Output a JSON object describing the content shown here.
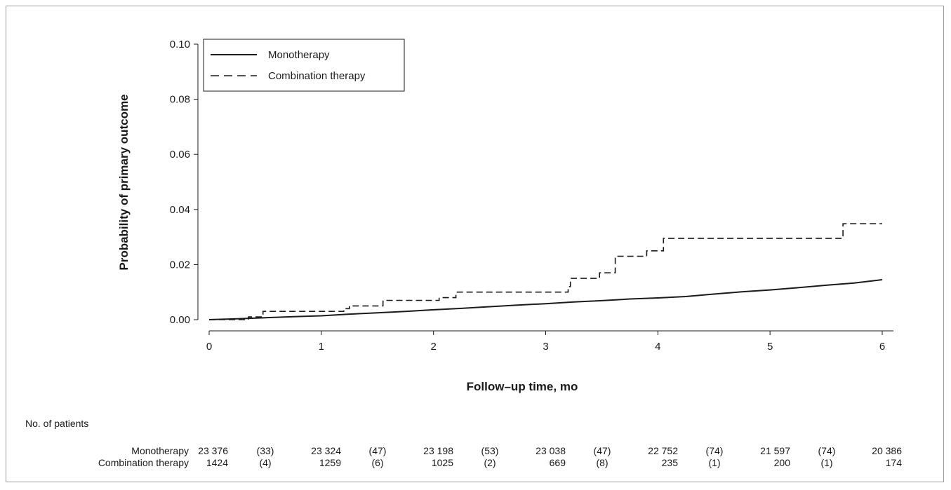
{
  "chart_data": {
    "type": "line",
    "subtype": "kaplan-meier cumulative incidence (step)",
    "title": "",
    "xlabel": "Follow–up time, mo",
    "ylabel": "Probability of primary outcome",
    "xlim": [
      0,
      6
    ],
    "ylim": [
      0,
      0.1
    ],
    "x_ticks": [
      0,
      1,
      2,
      3,
      4,
      5,
      6
    ],
    "x_tick_labels": [
      "0",
      "1",
      "2",
      "3",
      "4",
      "5",
      "6"
    ],
    "y_ticks": [
      0.0,
      0.02,
      0.04,
      0.06,
      0.08,
      0.1
    ],
    "y_tick_labels": [
      "0.00",
      "0.02",
      "0.04",
      "0.06",
      "0.08",
      "0.10"
    ],
    "grid": false,
    "legend_position": "top-left",
    "series": [
      {
        "name": "Monotherapy",
        "line_style": "solid",
        "color": "#1a1a1a",
        "x": [
          0,
          0.25,
          0.5,
          0.75,
          1.0,
          1.25,
          1.5,
          1.75,
          2.0,
          2.25,
          2.5,
          2.75,
          3.0,
          3.25,
          3.5,
          3.75,
          4.0,
          4.25,
          4.5,
          4.75,
          5.0,
          5.25,
          5.5,
          5.75,
          6.0
        ],
        "y": [
          0,
          0.0003,
          0.0007,
          0.0011,
          0.0014,
          0.002,
          0.0025,
          0.003,
          0.0036,
          0.0041,
          0.0047,
          0.0053,
          0.0058,
          0.0064,
          0.0069,
          0.0075,
          0.0079,
          0.0084,
          0.0093,
          0.0101,
          0.0108,
          0.0116,
          0.0125,
          0.0133,
          0.0145
        ]
      },
      {
        "name": "Combination therapy",
        "line_style": "dashed",
        "color": "#1a1a1a",
        "x": [
          0,
          0.35,
          0.48,
          1.2,
          1.25,
          1.55,
          2.05,
          2.2,
          3.2,
          3.22,
          3.48,
          3.62,
          3.9,
          4.05,
          5.65,
          6.0
        ],
        "y": [
          0,
          0.001,
          0.003,
          0.004,
          0.005,
          0.007,
          0.008,
          0.01,
          0.012,
          0.015,
          0.017,
          0.023,
          0.025,
          0.0295,
          0.0348,
          0.0348
        ]
      }
    ],
    "risk_table": {
      "header": "No. of patients",
      "rows": [
        {
          "label": "Monotherapy",
          "cells": [
            "23 376",
            "(33)",
            "23 324",
            "(47)",
            "23 198",
            "(53)",
            "23 038",
            "(47)",
            "22 752",
            "(74)",
            "21 597",
            "(74)",
            "20 386"
          ]
        },
        {
          "label": "Combination therapy",
          "cells": [
            "1424",
            "(4)",
            "1259",
            "(6)",
            "1025",
            "(2)",
            "669",
            "(8)",
            "235",
            "(1)",
            "200",
            "(1)",
            "174"
          ]
        }
      ]
    }
  }
}
